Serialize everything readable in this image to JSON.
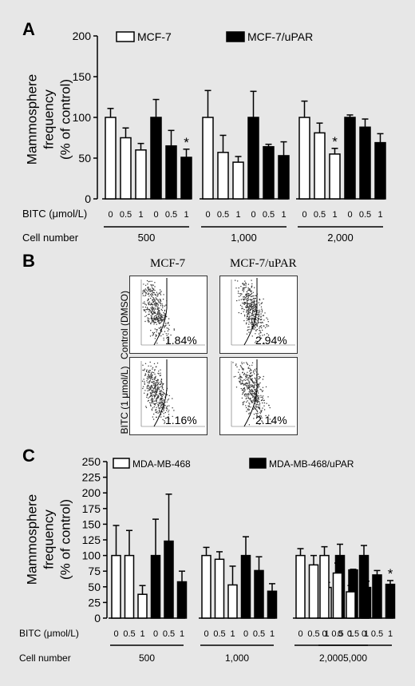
{
  "panels": {
    "a": "A",
    "b": "B",
    "c": "C"
  },
  "chart_data": [
    {
      "type": "bar",
      "panel": "A",
      "ylabel": [
        "Mammosphere",
        "frequency",
        "(% of control)"
      ],
      "ylim": [
        0,
        200
      ],
      "yticks": [
        "0",
        "50",
        "100",
        "150",
        "200"
      ],
      "legend": [
        {
          "label": "MCF-7",
          "fill": "#ffffff"
        },
        {
          "label": "MCF-7/uPAR",
          "fill": "#000000"
        }
      ],
      "row_labels": {
        "bitc": "BITC (μmol/L)",
        "cell_number": "Cell number"
      },
      "groups": [
        {
          "cell_number": "500",
          "bitc": [
            "0",
            "0.5",
            "1",
            "0",
            "0.5",
            "1"
          ],
          "values": [
            100,
            75,
            60,
            100,
            65,
            51
          ],
          "errors": [
            11,
            12,
            8,
            22,
            19,
            10
          ],
          "star": [
            false,
            false,
            false,
            false,
            false,
            true
          ]
        },
        {
          "cell_number": "1,000",
          "bitc": [
            "0",
            "0.5",
            "1",
            "0",
            "0.5",
            "1"
          ],
          "values": [
            100,
            57,
            45,
            100,
            64,
            53
          ],
          "errors": [
            33,
            21,
            7,
            32,
            3,
            17
          ],
          "star": [
            false,
            false,
            false,
            false,
            false,
            false
          ]
        },
        {
          "cell_number": "2,000",
          "bitc": [
            "0",
            "0.5",
            "1",
            "0",
            "0.5",
            "1"
          ],
          "values": [
            100,
            81,
            55,
            100,
            88,
            69
          ],
          "errors": [
            20,
            12,
            7,
            3,
            10,
            11
          ],
          "star": [
            false,
            false,
            true,
            false,
            false,
            false
          ]
        }
      ]
    },
    {
      "type": "bar",
      "panel": "C",
      "ylabel": [
        "Mammosphere",
        "frequency",
        "(% of control)"
      ],
      "ylim": [
        0,
        250
      ],
      "yticks": [
        "0",
        "25",
        "50",
        "75",
        "100",
        "125",
        "150",
        "175",
        "200",
        "225",
        "250"
      ],
      "legend": [
        {
          "label": "MDA-MB-468",
          "fill": "#ffffff"
        },
        {
          "label": "MDA-MB-468/uPAR",
          "fill": "#000000"
        }
      ],
      "row_labels": {
        "bitc": "BITC (μmol/L)",
        "cell_number": "Cell number"
      },
      "groups": [
        {
          "cell_number": "500",
          "bitc": [
            "0",
            "0.5",
            "1",
            "0",
            "0.5",
            "1"
          ],
          "values": [
            100,
            100,
            38,
            100,
            123,
            58
          ],
          "errors": [
            48,
            40,
            14,
            58,
            75,
            17
          ],
          "star": [
            false,
            false,
            false,
            false,
            false,
            false
          ]
        },
        {
          "cell_number": "1,000",
          "bitc": [
            "0",
            "0.5",
            "1",
            "0",
            "0.5",
            "1"
          ],
          "values": [
            100,
            94,
            53,
            100,
            76,
            43
          ],
          "errors": [
            13,
            12,
            30,
            30,
            22,
            12
          ],
          "star": [
            false,
            false,
            false,
            false,
            false,
            false
          ]
        },
        {
          "cell_number": "2,000",
          "bitc": [
            "0",
            "0.5",
            "1",
            "0",
            "0.5",
            "1"
          ],
          "values": [
            100,
            85,
            49,
            100,
            77,
            49
          ],
          "errors": [
            11,
            15,
            8,
            18,
            1,
            10
          ],
          "star": [
            false,
            false,
            true,
            false,
            false,
            true
          ]
        },
        {
          "cell_number": "5,000",
          "bitc": [
            "0",
            "0.5",
            "1",
            "0",
            "0.5",
            "1"
          ],
          "values": [
            100,
            72,
            42,
            100,
            69,
            54
          ],
          "errors": [
            14,
            16,
            10,
            16,
            7,
            6
          ],
          "star": [
            false,
            false,
            true,
            false,
            false,
            true
          ]
        }
      ]
    }
  ],
  "flow": {
    "col_titles": [
      "MCF-7",
      "MCF-7/uPAR"
    ],
    "row_labels": [
      "Control (DMSO)",
      "BITC (1 μmol/L)"
    ],
    "percentages": [
      [
        "1.84%",
        "2.94%"
      ],
      [
        "1.16%",
        "2.14%"
      ]
    ]
  },
  "star_symbol": "*"
}
